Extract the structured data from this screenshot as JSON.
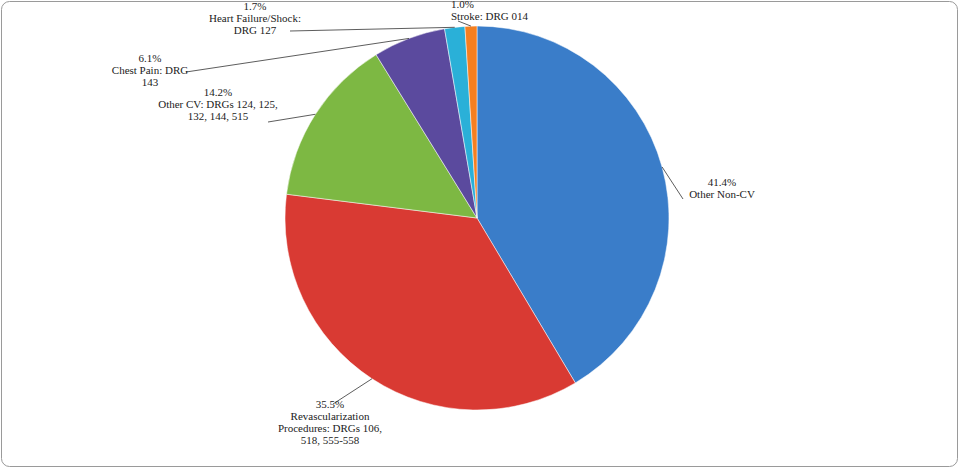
{
  "chart_data": {
    "type": "pie",
    "categories": [
      "Other Non-CV",
      "Revascularization Procedures: DRGs 106, 518, 555-558",
      "Other CV: DRGs 124, 125, 132, 144, 515",
      "Chest Pain: DRG 143",
      "Heart Failure/Shock: DRG 127",
      "Stroke: DRG 014"
    ],
    "values": [
      41.4,
      35.5,
      14.2,
      6.1,
      1.7,
      1.0
    ],
    "value_labels": [
      "41.4%",
      "35.5%",
      "14.2%",
      "6.1%",
      "1.7%",
      "1.0%"
    ],
    "colors": [
      "#3a7dc9",
      "#d93a33",
      "#7db843",
      "#5b4a9e",
      "#2ab0d8",
      "#f57f20"
    ],
    "data_labels": true
  }
}
